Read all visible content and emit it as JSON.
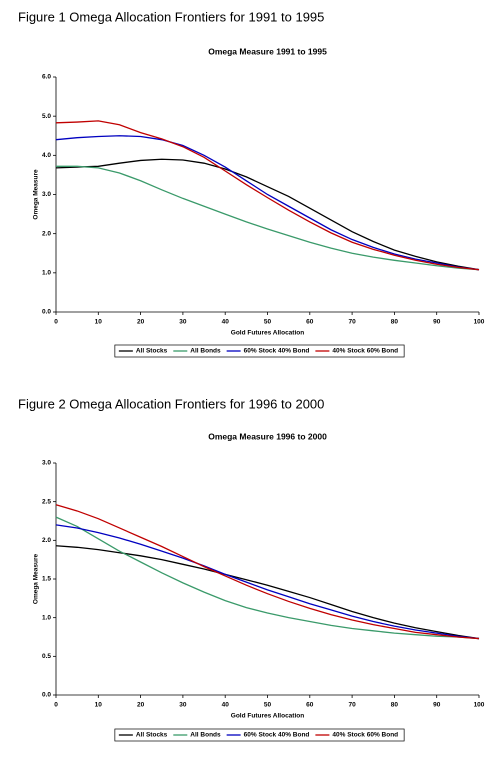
{
  "chart_data": [
    {
      "type": "line",
      "caption": "Figure 1 Omega Allocation Frontiers for 1991 to 1995",
      "title": "Omega Measure 1991 to 1995",
      "x_label": "Gold Futures Allocation",
      "y_label": "Omega Measure",
      "x": [
        0,
        5,
        10,
        15,
        20,
        25,
        30,
        35,
        40,
        45,
        50,
        55,
        60,
        65,
        70,
        75,
        80,
        85,
        90,
        95,
        100
      ],
      "xlim": [
        0,
        100
      ],
      "xticks": [
        0,
        10,
        20,
        30,
        40,
        50,
        60,
        70,
        80,
        90,
        100
      ],
      "ylim": [
        0,
        6
      ],
      "yticks": [
        {
          "value": 0,
          "label": "0.0"
        },
        {
          "value": 1,
          "label": "1.0"
        },
        {
          "value": 2,
          "label": "2.0"
        },
        {
          "value": 3,
          "label": "3.0"
        },
        {
          "value": 4,
          "label": "4.0"
        },
        {
          "value": 5,
          "label": "5.0"
        },
        {
          "value": 6,
          "label": "6.0"
        }
      ],
      "grid": false,
      "series": [
        {
          "name": "All Stocks",
          "color": "#000000",
          "values": [
            3.68,
            3.7,
            3.72,
            3.8,
            3.87,
            3.9,
            3.88,
            3.8,
            3.65,
            3.45,
            3.2,
            2.95,
            2.65,
            2.35,
            2.05,
            1.8,
            1.58,
            1.42,
            1.28,
            1.17,
            1.08
          ]
        },
        {
          "name": "All Bonds",
          "color": "#3a9a6a",
          "values": [
            3.72,
            3.72,
            3.68,
            3.55,
            3.35,
            3.12,
            2.9,
            2.7,
            2.5,
            2.3,
            2.12,
            1.95,
            1.78,
            1.63,
            1.5,
            1.4,
            1.32,
            1.25,
            1.18,
            1.12,
            1.08
          ]
        },
        {
          "name": "60% Stock 40% Bond",
          "color": "#0000c0",
          "values": [
            4.4,
            4.45,
            4.48,
            4.5,
            4.48,
            4.4,
            4.25,
            4.0,
            3.7,
            3.35,
            3.0,
            2.7,
            2.4,
            2.1,
            1.85,
            1.65,
            1.48,
            1.35,
            1.25,
            1.15,
            1.08
          ]
        },
        {
          "name": "40% Stock 60% Bond",
          "color": "#c00000",
          "values": [
            4.83,
            4.85,
            4.88,
            4.78,
            4.58,
            4.42,
            4.22,
            3.95,
            3.6,
            3.25,
            2.92,
            2.6,
            2.3,
            2.02,
            1.78,
            1.6,
            1.45,
            1.32,
            1.22,
            1.14,
            1.08
          ]
        }
      ]
    },
    {
      "type": "line",
      "caption": "Figure 2 Omega Allocation Frontiers for 1996 to 2000",
      "title": "Omega Measure 1996 to 2000",
      "x_label": "Gold Futures Allocation",
      "y_label": "Omega Measure",
      "x": [
        0,
        5,
        10,
        15,
        20,
        25,
        30,
        35,
        40,
        45,
        50,
        55,
        60,
        65,
        70,
        75,
        80,
        85,
        90,
        95,
        100
      ],
      "xlim": [
        0,
        100
      ],
      "xticks": [
        0,
        10,
        20,
        30,
        40,
        50,
        60,
        70,
        80,
        90,
        100
      ],
      "ylim": [
        0,
        3
      ],
      "yticks": [
        {
          "value": 0,
          "label": "0.0"
        },
        {
          "value": 0.5,
          "label": "0.5"
        },
        {
          "value": 1,
          "label": "1.0"
        },
        {
          "value": 1.5,
          "label": "1.5"
        },
        {
          "value": 2,
          "label": "2.0"
        },
        {
          "value": 2.5,
          "label": "2.5"
        },
        {
          "value": 3,
          "label": "3.0"
        }
      ],
      "grid": false,
      "series": [
        {
          "name": "All Stocks",
          "color": "#000000",
          "values": [
            1.93,
            1.91,
            1.88,
            1.84,
            1.8,
            1.75,
            1.69,
            1.63,
            1.56,
            1.49,
            1.42,
            1.34,
            1.26,
            1.17,
            1.08,
            1.0,
            0.93,
            0.87,
            0.82,
            0.77,
            0.73
          ]
        },
        {
          "name": "All Bonds",
          "color": "#3a9a6a",
          "values": [
            2.3,
            2.18,
            2.02,
            1.86,
            1.72,
            1.58,
            1.45,
            1.33,
            1.22,
            1.13,
            1.06,
            1.0,
            0.95,
            0.9,
            0.86,
            0.83,
            0.8,
            0.78,
            0.76,
            0.75,
            0.73
          ]
        },
        {
          "name": "60% Stock 40% Bond",
          "color": "#0000c0",
          "values": [
            2.2,
            2.16,
            2.1,
            2.03,
            1.95,
            1.86,
            1.77,
            1.67,
            1.56,
            1.46,
            1.36,
            1.27,
            1.18,
            1.1,
            1.02,
            0.95,
            0.89,
            0.84,
            0.8,
            0.76,
            0.73
          ]
        },
        {
          "name": "40% Stock 60% Bond",
          "color": "#c00000",
          "values": [
            2.46,
            2.38,
            2.28,
            2.16,
            2.04,
            1.92,
            1.79,
            1.66,
            1.54,
            1.42,
            1.31,
            1.21,
            1.12,
            1.04,
            0.97,
            0.91,
            0.86,
            0.81,
            0.78,
            0.75,
            0.73
          ]
        }
      ]
    }
  ]
}
